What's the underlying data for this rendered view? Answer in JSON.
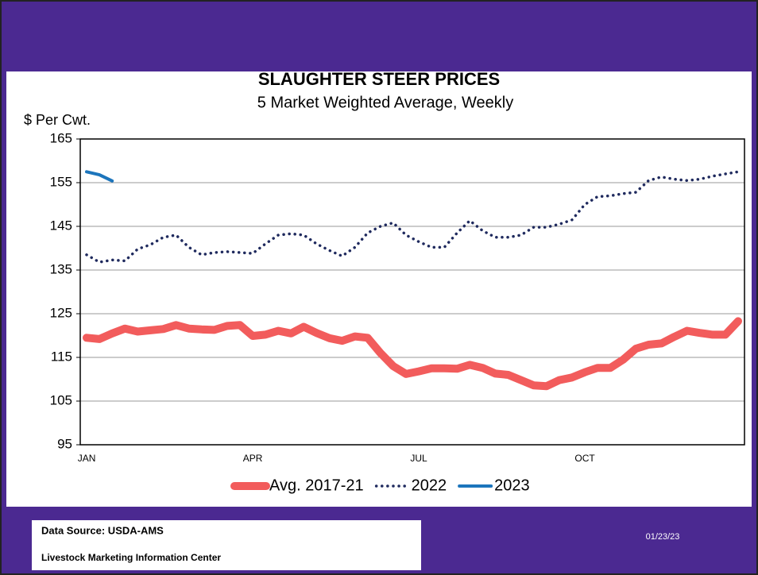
{
  "chart_data": {
    "type": "line",
    "title": "SLAUGHTER STEER PRICES",
    "subtitle": "5 Market Weighted Average, Weekly",
    "y_label": "$ Per Cwt.",
    "categories": [
      "JAN",
      null,
      null,
      null,
      null,
      null,
      null,
      null,
      null,
      null,
      null,
      null,
      null,
      "APR",
      null,
      null,
      null,
      null,
      null,
      null,
      null,
      null,
      null,
      null,
      null,
      null,
      "JUL",
      null,
      null,
      null,
      null,
      null,
      null,
      null,
      null,
      null,
      null,
      null,
      null,
      "OCT",
      null,
      null,
      null,
      null,
      null,
      null,
      null,
      null,
      null,
      null,
      null,
      null
    ],
    "series": [
      {
        "name": "Avg. 2017-21",
        "color": "#f25c5c",
        "style": "solid",
        "values": [
          119.5,
          119.2,
          120.5,
          121.6,
          120.9,
          121.2,
          121.5,
          122.4,
          121.6,
          121.4,
          121.3,
          122.2,
          122.4,
          119.9,
          120.2,
          121.1,
          120.5,
          122.0,
          120.6,
          119.4,
          118.8,
          119.8,
          119.5,
          116.0,
          113.0,
          111.2,
          111.8,
          112.5,
          112.5,
          112.4,
          113.3,
          112.6,
          111.3,
          111.0,
          109.8,
          108.6,
          108.4,
          109.8,
          110.4,
          111.6,
          112.6,
          112.6,
          114.5,
          117.0,
          117.9,
          118.2,
          119.7,
          121.1,
          120.6,
          120.2,
          120.2,
          123.3
        ]
      },
      {
        "name": "2022",
        "color": "#1f2a5e",
        "style": "dotted",
        "values": [
          138.5,
          136.8,
          137.3,
          137.1,
          139.8,
          140.8,
          142.5,
          143,
          140.2,
          138.5,
          139,
          139.2,
          139,
          138.8,
          141,
          143,
          143.3,
          143,
          141,
          139.5,
          138.2,
          140.2,
          143.5,
          145,
          145.8,
          143,
          141.5,
          140.2,
          140.2,
          143.5,
          146.3,
          144,
          142.5,
          142.5,
          143,
          144.8,
          144.8,
          145.5,
          146.5,
          150,
          151.8,
          152,
          152.5,
          152.8,
          155.5,
          156.3,
          155.8,
          155.5,
          155.8,
          156.5,
          157,
          157.5
        ]
      },
      {
        "name": "2023",
        "color": "#1c75bc",
        "style": "solid",
        "values": [
          157.5,
          156.8,
          155.4,
          null,
          null,
          null,
          null,
          null,
          null,
          null,
          null,
          null,
          null,
          null,
          null,
          null,
          null,
          null,
          null,
          null,
          null,
          null,
          null,
          null,
          null,
          null,
          null,
          null,
          null,
          null,
          null,
          null,
          null,
          null,
          null,
          null,
          null,
          null,
          null,
          null,
          null,
          null,
          null,
          null,
          null,
          null,
          null,
          null,
          null,
          null,
          null,
          null
        ]
      }
    ],
    "ylim": [
      95,
      165
    ],
    "yticks": [
      95,
      105,
      115,
      125,
      135,
      145,
      155,
      165
    ],
    "grid": true,
    "legend": "bottom"
  },
  "footer": {
    "source": "Data Source:  USDA-AMS",
    "org": "Livestock Marketing Information Center",
    "date": "01/23/23"
  }
}
